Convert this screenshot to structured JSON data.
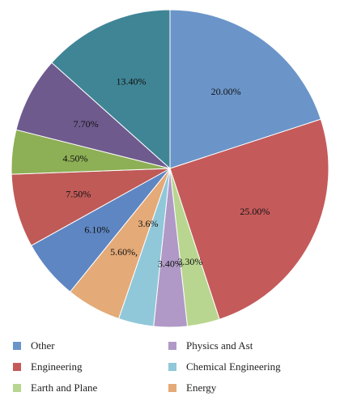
{
  "chart_data": {
    "type": "pie",
    "start_angle_deg": 0,
    "direction": "clockwise",
    "slices": [
      {
        "label": "20.00%",
        "value": 20.0,
        "color": "#6b95c9"
      },
      {
        "label": "25.00%",
        "value": 25.0,
        "color": "#c55a5a"
      },
      {
        "label": "3.30%",
        "value": 3.3,
        "color": "#b8d68f"
      },
      {
        "label": "3.40%",
        "value": 3.4,
        "color": "#b099c6"
      },
      {
        "label": "",
        "value": 3.6,
        "color": "#90c8d9"
      },
      {
        "label": "5.60%,",
        "value": 5.6,
        "color": "#e4aa78"
      },
      {
        "label": "6.10%",
        "value": 6.1,
        "color": "#5e86c2"
      },
      {
        "label": "7.50%",
        "value": 7.5,
        "color": "#bf5a57"
      },
      {
        "label": "4.50%",
        "value": 4.5,
        "color": "#8daf55"
      },
      {
        "label": "7.70%",
        "value": 7.7,
        "color": "#6e5a8d"
      },
      {
        "label": "13.40%",
        "value": 13.4,
        "color": "#3f8595"
      }
    ],
    "extra_labels": [
      "3.6%"
    ]
  },
  "legend": [
    {
      "label": "Other",
      "color": "#6b95c9"
    },
    {
      "label": "Physics and Ast",
      "color": "#b099c6"
    },
    {
      "label": "Engineering",
      "color": "#c55a5a"
    },
    {
      "label": "Chemical Engineering",
      "color": "#90c8d9"
    },
    {
      "label": "Earth and Plane",
      "color": "#b8d68f"
    },
    {
      "label": "Energy",
      "color": "#e4aa78"
    }
  ]
}
